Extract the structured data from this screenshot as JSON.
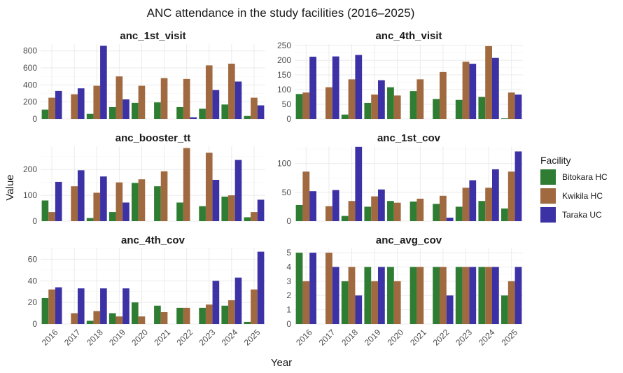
{
  "chart_data": {
    "type": "bar",
    "title": "ANC attendance in the study facilities (2016–2025)",
    "xlabel": "Year",
    "ylabel": "Value",
    "legend": {
      "title": "Facility",
      "placement": "right"
    },
    "categories": [
      "2016",
      "2017",
      "2018",
      "2019",
      "2020",
      "2021",
      "2022",
      "2023",
      "2024",
      "2025"
    ],
    "series_colors": {
      "Bitokara HC": "#2e7d32",
      "Kwikila HC": "#a0693f",
      "Taraka UC": "#3c31a5"
    },
    "panels": [
      {
        "name": "anc_1st_visit",
        "ylim": [
          0,
          880
        ],
        "yticks": [
          0,
          200,
          400,
          600,
          800
        ],
        "series": [
          {
            "name": "Bitokara HC",
            "values": [
              110,
              null,
              60,
              140,
              190,
              195,
              140,
              120,
              170,
              35
            ]
          },
          {
            "name": "Kwikila HC",
            "values": [
              250,
              290,
              390,
              500,
              390,
              480,
              470,
              630,
              650,
              250
            ]
          },
          {
            "name": "Taraka UC",
            "values": [
              330,
              360,
              860,
              230,
              null,
              null,
              20,
              340,
              440,
              160
            ]
          }
        ]
      },
      {
        "name": "anc_4th_visit",
        "ylim": [
          0,
          255
        ],
        "yticks": [
          0,
          50,
          100,
          150,
          200,
          250
        ],
        "series": [
          {
            "name": "Bitokara HC",
            "values": [
              85,
              null,
              15,
              55,
              108,
              95,
              68,
              65,
              75,
              2
            ]
          },
          {
            "name": "Kwikila HC",
            "values": [
              90,
              108,
              135,
              83,
              80,
              135,
              160,
              195,
              248,
              90
            ]
          },
          {
            "name": "Taraka UC",
            "values": [
              212,
              213,
              218,
              132,
              null,
              null,
              null,
              188,
              208,
              83
            ]
          }
        ]
      },
      {
        "name": "anc_booster_tt",
        "ylim": [
          0,
          290
        ],
        "yticks": [
          0,
          100,
          200
        ],
        "series": [
          {
            "name": "Bitokara HC",
            "values": [
              80,
              null,
              12,
              35,
              148,
              135,
              72,
              58,
              95,
              15
            ]
          },
          {
            "name": "Kwikila HC",
            "values": [
              35,
              135,
              110,
              150,
              162,
              193,
              283,
              265,
              100,
              35
            ]
          },
          {
            "name": "Taraka UC",
            "values": [
              152,
              197,
              173,
              72,
              null,
              null,
              null,
              160,
              237,
              83
            ]
          }
        ]
      },
      {
        "name": "anc_1st_cov",
        "ylim": [
          0,
          130
        ],
        "yticks": [
          0,
          50,
          100
        ],
        "series": [
          {
            "name": "Bitokara HC",
            "values": [
              28,
              null,
              9,
              25,
              35,
              34,
              30,
              25,
              35,
              22
            ]
          },
          {
            "name": "Kwikila HC",
            "values": [
              86,
              26,
              35,
              43,
              32,
              39,
              44,
              58,
              58,
              86
            ]
          },
          {
            "name": "Taraka UC",
            "values": [
              52,
              54,
              129,
              55,
              null,
              null,
              6,
              71,
              90,
              121
            ]
          }
        ]
      },
      {
        "name": "anc_4th_cov",
        "ylim": [
          0,
          70
        ],
        "yticks": [
          0,
          20,
          40,
          60
        ],
        "series": [
          {
            "name": "Bitokara HC",
            "values": [
              24,
              null,
              3,
              10,
              20,
              17,
              15,
              15,
              17,
              2
            ]
          },
          {
            "name": "Kwikila HC",
            "values": [
              32,
              10,
              12,
              7,
              7,
              11,
              15,
              18,
              22,
              32
            ]
          },
          {
            "name": "Taraka UC",
            "values": [
              34,
              33,
              33,
              33,
              null,
              null,
              null,
              40,
              43,
              67
            ]
          }
        ]
      },
      {
        "name": "anc_avg_cov",
        "ylim": [
          0,
          5.3
        ],
        "yticks": [
          0,
          1,
          2,
          3,
          4,
          5
        ],
        "series": [
          {
            "name": "Bitokara HC",
            "values": [
              5,
              null,
              3,
              4,
              4,
              4,
              4,
              4,
              4,
              2
            ]
          },
          {
            "name": "Kwikila HC",
            "values": [
              3,
              5,
              4,
              3,
              3,
              4,
              4,
              4,
              4,
              3
            ]
          },
          {
            "name": "Taraka UC",
            "values": [
              5,
              4,
              2,
              4,
              null,
              null,
              2,
              4,
              4,
              4
            ]
          }
        ]
      }
    ]
  }
}
